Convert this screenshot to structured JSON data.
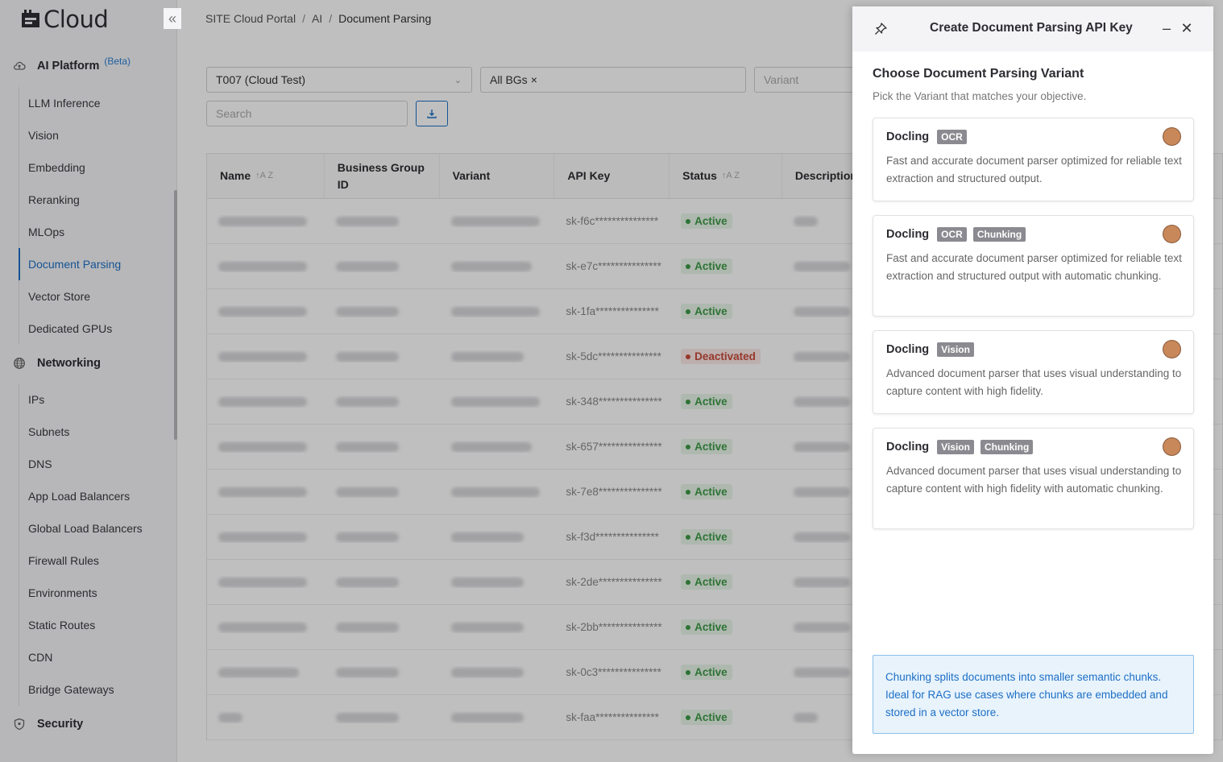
{
  "app": {
    "logo_text": "Cloud"
  },
  "sidebar": {
    "ai_platform": {
      "label": "AI Platform",
      "badge": "(Beta)"
    },
    "ai_items": [
      "LLM Inference",
      "Vision",
      "Embedding",
      "Reranking",
      "MLOps",
      "Document Parsing",
      "Vector Store",
      "Dedicated GPUs"
    ],
    "networking": {
      "label": "Networking"
    },
    "net_items": [
      "IPs",
      "Subnets",
      "DNS",
      "App Load Balancers",
      "Global Load Balancers",
      "Firewall Rules",
      "Environments",
      "Static Routes",
      "CDN",
      "Bridge Gateways"
    ],
    "security": {
      "label": "Security"
    },
    "active_item": "Document Parsing"
  },
  "breadcrumb": [
    "SITE Cloud Portal",
    "AI",
    "Document Parsing"
  ],
  "filters": {
    "tenant": "T007 (Cloud Test)",
    "bgs": "All BGs",
    "variant_placeholder": "Variant",
    "search_placeholder": "Search"
  },
  "table": {
    "headers": [
      "Name",
      "Business Group ID",
      "Variant",
      "API Key",
      "Status",
      "Description"
    ],
    "rows": [
      {
        "api_key": "sk-f6c***************",
        "status": "Active"
      },
      {
        "api_key": "sk-e7c***************",
        "status": "Active"
      },
      {
        "api_key": "sk-1fa***************",
        "status": "Active"
      },
      {
        "api_key": "sk-5dc***************",
        "status": "Deactivated"
      },
      {
        "api_key": "sk-348***************",
        "status": "Active"
      },
      {
        "api_key": "sk-657***************",
        "status": "Active"
      },
      {
        "api_key": "sk-7e8***************",
        "status": "Active"
      },
      {
        "api_key": "sk-f3d***************",
        "status": "Active"
      },
      {
        "api_key": "sk-2de***************",
        "status": "Active"
      },
      {
        "api_key": "sk-2bb***************",
        "status": "Active"
      },
      {
        "api_key": "sk-0c3***************",
        "status": "Active"
      },
      {
        "api_key": "sk-faa***************",
        "status": "Active"
      }
    ]
  },
  "drawer": {
    "title": "Create Document Parsing API Key",
    "section_title": "Choose Document Parsing Variant",
    "section_subtitle": "Pick the Variant that matches your objective.",
    "cards": [
      {
        "name": "Docling",
        "badges": [
          "OCR"
        ],
        "desc": "Fast and accurate document parser optimized for reliable text extraction and structured output."
      },
      {
        "name": "Docling",
        "badges": [
          "OCR",
          "Chunking"
        ],
        "desc": "Fast and accurate document parser optimized for reliable text extraction and structured output with automatic chunking."
      },
      {
        "name": "Docling",
        "badges": [
          "Vision"
        ],
        "desc": "Advanced document parser that uses visual understanding to capture content with high fidelity."
      },
      {
        "name": "Docling",
        "badges": [
          "Vision",
          "Chunking"
        ],
        "desc": "Advanced document parser that uses visual understanding to capture content with high fidelity with automatic chunking."
      }
    ],
    "info": "Chunking splits documents into smaller semantic chunks. Ideal for RAG use cases where chunks are embedded and stored in a vector store."
  },
  "colors": {
    "accent": "#1d6fc6",
    "active_status": "#3c9a46",
    "deactivated_status": "#c94a3a",
    "info_bg": "#e8f3fc"
  }
}
